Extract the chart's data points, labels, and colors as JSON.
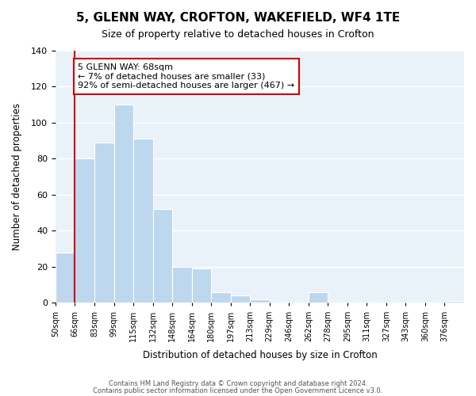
{
  "title": "5, GLENN WAY, CROFTON, WAKEFIELD, WF4 1TE",
  "subtitle": "Size of property relative to detached houses in Crofton",
  "xlabel": "Distribution of detached houses by size in Crofton",
  "ylabel": "Number of detached properties",
  "bar_color": "#bdd7ee",
  "bar_edge_color": "#ffffff",
  "grid_color": "#ffffff",
  "bg_color": "#e9f2f9",
  "tick_labels": [
    "50sqm",
    "66sqm",
    "83sqm",
    "99sqm",
    "115sqm",
    "132sqm",
    "148sqm",
    "164sqm",
    "180sqm",
    "197sqm",
    "213sqm",
    "229sqm",
    "246sqm",
    "262sqm",
    "278sqm",
    "295sqm",
    "311sqm",
    "327sqm",
    "343sqm",
    "360sqm",
    "376sqm"
  ],
  "bar_values": [
    28,
    80,
    89,
    110,
    91,
    52,
    20,
    19,
    6,
    4,
    2,
    0,
    0,
    6,
    0,
    0,
    0,
    0,
    0,
    0,
    1
  ],
  "ylim": [
    0,
    140
  ],
  "yticks": [
    0,
    20,
    40,
    60,
    80,
    100,
    120,
    140
  ],
  "property_line_x": 1.0,
  "annotation_title": "5 GLENN WAY: 68sqm",
  "annotation_line1": "← 7% of detached houses are smaller (33)",
  "annotation_line2": "92% of semi-detached houses are larger (467) →",
  "annotation_box_color": "#ffffff",
  "annotation_box_edge": "#cc0000",
  "property_line_color": "#cc0000",
  "footer1": "Contains HM Land Registry data © Crown copyright and database right 2024.",
  "footer2": "Contains public sector information licensed under the Open Government Licence v3.0."
}
